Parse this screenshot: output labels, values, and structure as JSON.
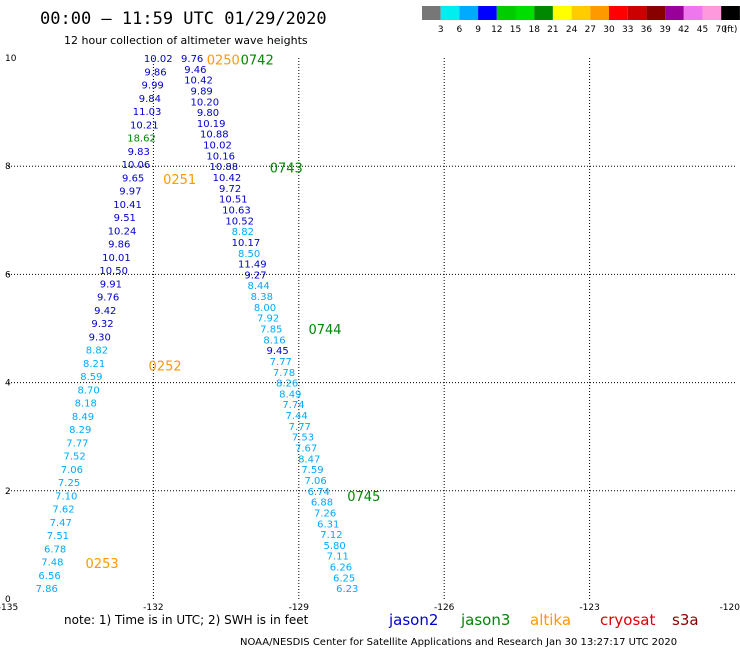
{
  "title": "00:00 – 11:59 UTC 01/29/2020",
  "subtitle": "12 hour collection of altimeter wave heights",
  "note": "note:  1) Time is in UTC;  2) SWH is in feet",
  "credit": "NOAA/NESDIS Center for Satellite Applications and Research    Jan 30 13:27:17 UTC 2020",
  "satellites": [
    {
      "name": "jason2",
      "color": "#0000cc"
    },
    {
      "name": "jason3",
      "color": "#008800"
    },
    {
      "name": "altika",
      "color": "#ff9900"
    },
    {
      "name": "cryosat",
      "color": "#dd0000"
    },
    {
      "name": "s3a",
      "color": "#880000"
    }
  ],
  "colorbar": {
    "labels": [
      "3",
      "6",
      "9",
      "12",
      "15",
      "18",
      "21",
      "24",
      "27",
      "30",
      "33",
      "36",
      "39",
      "42",
      "45",
      "70",
      "(ft)"
    ],
    "colors": [
      "#777777",
      "#00eeee",
      "#00aaff",
      "#0000ff",
      "#00cc00",
      "#00dd00",
      "#008800",
      "#ffff00",
      "#ffcc00",
      "#ff9900",
      "#ff0000",
      "#cc0000",
      "#880000",
      "#990099",
      "#ee77ee",
      "#ff99dd",
      "#000000"
    ]
  },
  "chart_data": {
    "type": "scatter",
    "xlim": [
      -135,
      -120
    ],
    "ylim": [
      0,
      10
    ],
    "x_ticks": [
      "-135",
      "-132",
      "-129",
      "-126",
      "-123",
      "-120"
    ],
    "y_ticks": [
      "0",
      "2",
      "4",
      "6",
      "8",
      "10"
    ],
    "grid": true,
    "track_a": {
      "values": [
        "10.02",
        "9.86",
        "9.99",
        "9.84",
        "11.03",
        "10.21",
        "18.62",
        "9.83",
        "10.06",
        "9.65",
        "9.97",
        "10.41",
        "9.51",
        "10.24",
        "9.86",
        "10.01",
        "10.50",
        "9.91",
        "9.76",
        "9.42",
        "9.32",
        "9.30",
        "8.82",
        "8.21",
        "8.59",
        "8.70",
        "8.18",
        "8.49",
        "8.29",
        "7.77",
        "7.52",
        "7.06",
        "7.25",
        "7.10",
        "7.62",
        "7.47",
        "7.51",
        "6.78",
        "7.48",
        "6.56",
        "7.86"
      ],
      "x_start": -131.9,
      "x_end": -134.2,
      "y_start": 10.0,
      "y_end": 0.2
    },
    "track_b": {
      "values": [
        "9.76",
        "9.46",
        "10.42",
        "9.89",
        "10.20",
        "9.80",
        "10.19",
        "10.88",
        "10.02",
        "10.16",
        "10.88",
        "10.42",
        "9.72",
        "10.51",
        "10.63",
        "10.52",
        "8.82",
        "10.17",
        "8.50",
        "11.49",
        "9.27",
        "8.44",
        "8.38",
        "8.00",
        "7.92",
        "7.85",
        "8.16",
        "9.45",
        "7.77",
        "7.78",
        "8.26",
        "8.49",
        "7.74",
        "7.44",
        "7.77",
        "7.53",
        "7.67",
        "8.47",
        "7.59",
        "7.06",
        "6.74",
        "6.88",
        "7.26",
        "6.31",
        "7.12",
        "5.80",
        "7.11",
        "6.26",
        "6.25",
        "6.23"
      ],
      "x_start": -131.2,
      "x_end": -128.0,
      "y_start": 10.0,
      "y_end": 0.2
    },
    "pass_labels": [
      {
        "text": "0250",
        "x": -130.9,
        "y": 9.97,
        "sat": "altika"
      },
      {
        "text": "0742",
        "x": -130.2,
        "y": 9.97,
        "sat": "jason3"
      },
      {
        "text": "0251",
        "x": -131.8,
        "y": 7.76,
        "sat": "altika"
      },
      {
        "text": "0743",
        "x": -129.6,
        "y": 7.98,
        "sat": "jason3"
      },
      {
        "text": "0252",
        "x": -132.1,
        "y": 4.32,
        "sat": "altika"
      },
      {
        "text": "0744",
        "x": -128.8,
        "y": 4.99,
        "sat": "jason3"
      },
      {
        "text": "0253",
        "x": -133.4,
        "y": 0.67,
        "sat": "altika"
      },
      {
        "text": "0745",
        "x": -128.0,
        "y": 1.9,
        "sat": "jason3"
      }
    ]
  }
}
